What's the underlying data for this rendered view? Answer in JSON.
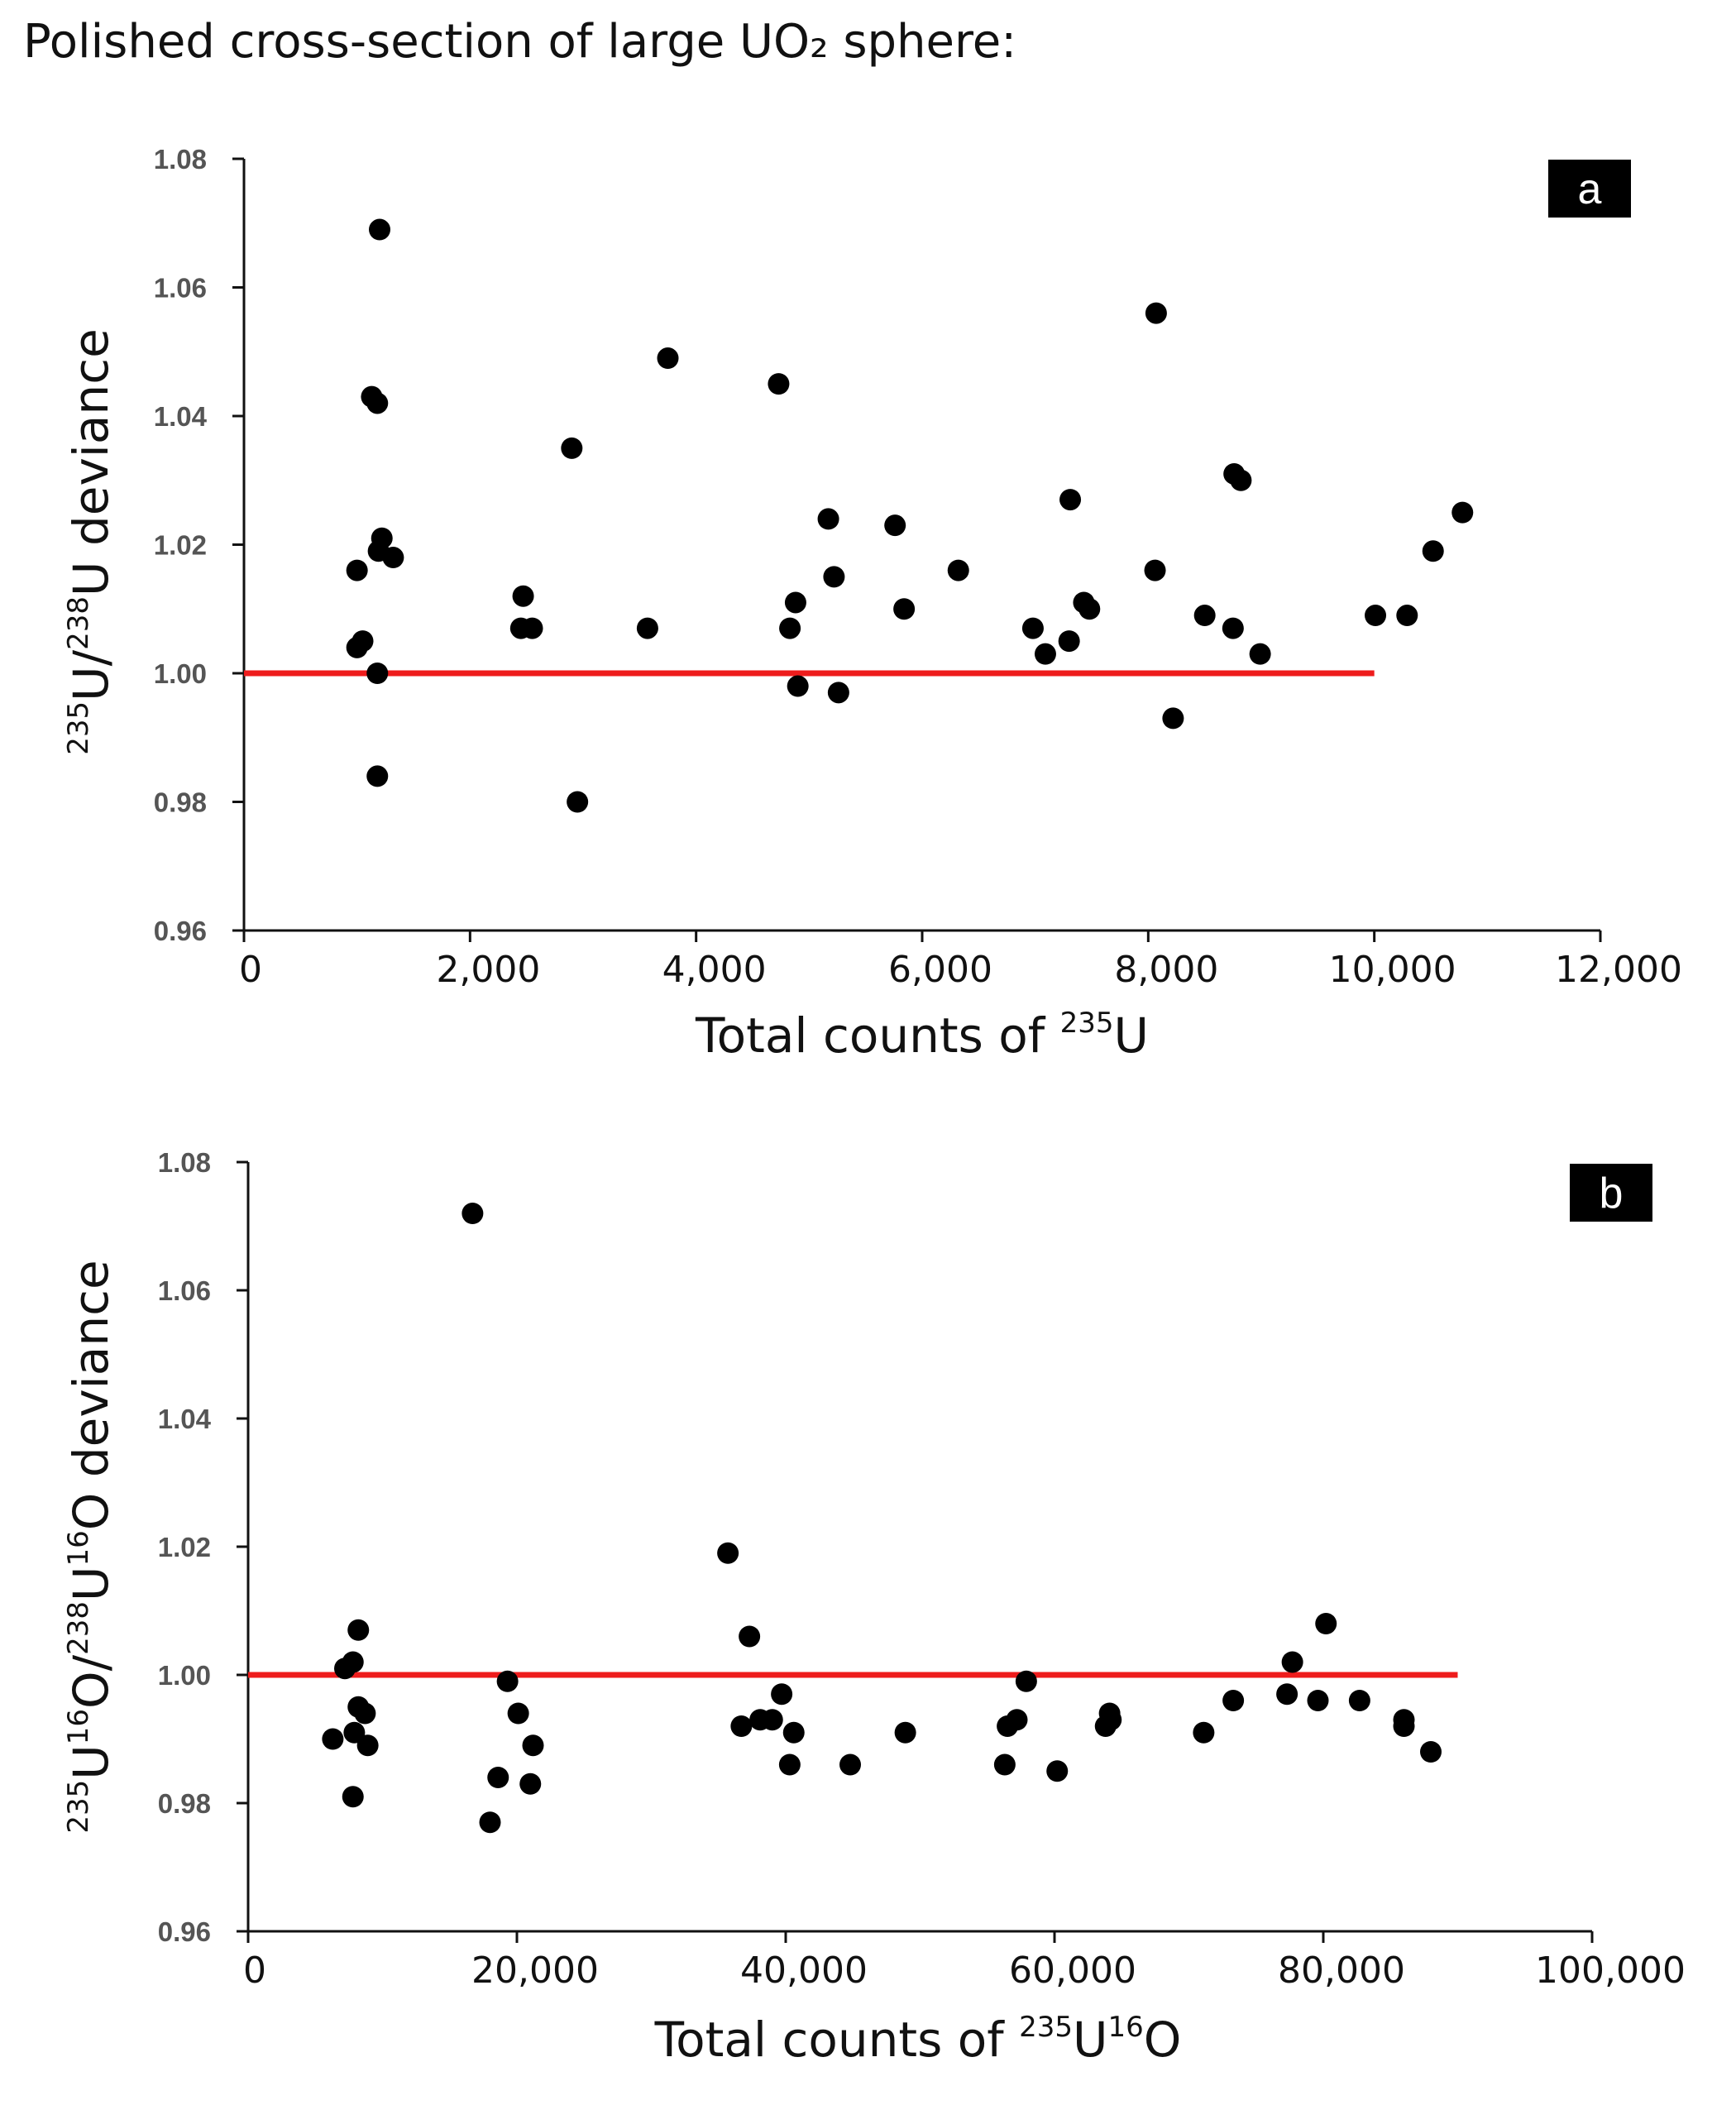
{
  "figure": {
    "title": "Polished cross-section of large UO₂ sphere:"
  },
  "chart_data": [
    {
      "panel": "a",
      "type": "scatter",
      "xlabel": {
        "text": "Total counts of ",
        "sup": "235",
        "tail": "U"
      },
      "ylabel": {
        "p1_sup": "235",
        "p1": "U/",
        "p2_sup": "238",
        "p2": "U deviance"
      },
      "xlim": [
        0,
        12000
      ],
      "ylim": [
        0.96,
        1.08
      ],
      "xticks": [
        "0",
        "2,000",
        "4,000",
        "6,000",
        "8,000",
        "10,000",
        "12,000"
      ],
      "yticks": [
        "0.96",
        "0.98",
        "1.00",
        "1.02",
        "1.04",
        "1.06",
        "1.08"
      ],
      "reference_line": {
        "y": 1.0,
        "x_start": 0,
        "x_end": 10000,
        "color": "#ee1c1c"
      },
      "points": [
        [
          1200,
          1.069
        ],
        [
          1130,
          1.043
        ],
        [
          1180,
          1.042
        ],
        [
          1000,
          1.016
        ],
        [
          1190,
          1.019
        ],
        [
          1220,
          1.021
        ],
        [
          1320,
          1.018
        ],
        [
          1050,
          1.005
        ],
        [
          1000,
          1.004
        ],
        [
          1180,
          1.0
        ],
        [
          1180,
          0.984
        ],
        [
          2470,
          1.012
        ],
        [
          2450,
          1.007
        ],
        [
          2550,
          1.007
        ],
        [
          2900,
          1.035
        ],
        [
          2950,
          0.98
        ],
        [
          3570,
          1.007
        ],
        [
          3750,
          1.049
        ],
        [
          4730,
          1.045
        ],
        [
          4880,
          1.011
        ],
        [
          4830,
          1.007
        ],
        [
          4900,
          0.998
        ],
        [
          5170,
          1.024
        ],
        [
          5220,
          1.015
        ],
        [
          5260,
          0.997
        ],
        [
          5760,
          1.023
        ],
        [
          5840,
          1.01
        ],
        [
          6320,
          1.016
        ],
        [
          6980,
          1.007
        ],
        [
          7090,
          1.003
        ],
        [
          7310,
          1.027
        ],
        [
          7300,
          1.005
        ],
        [
          7430,
          1.011
        ],
        [
          7480,
          1.01
        ],
        [
          8070,
          1.056
        ],
        [
          8060,
          1.016
        ],
        [
          8220,
          0.993
        ],
        [
          8500,
          1.009
        ],
        [
          8750,
          1.007
        ],
        [
          8760,
          1.031
        ],
        [
          8820,
          1.03
        ],
        [
          8990,
          1.003
        ],
        [
          10010,
          1.009
        ],
        [
          10290,
          1.009
        ],
        [
          10520,
          1.019
        ],
        [
          10780,
          1.025
        ]
      ]
    },
    {
      "panel": "b",
      "type": "scatter",
      "xlabel": {
        "text": "Total counts of ",
        "sup1": "235",
        "mid": "U",
        "sup2": "16",
        "tail": "O"
      },
      "ylabel": {
        "p1_sup": "235",
        "p1": "U",
        "p2_sup": "16",
        "p2": "O/",
        "p3_sup": "238",
        "p3": "U",
        "p4_sup": "16",
        "p4": "O deviance"
      },
      "xlim": [
        0,
        100000
      ],
      "ylim": [
        0.96,
        1.08
      ],
      "xticks": [
        "0",
        "20,000",
        "40,000",
        "60,000",
        "80,000",
        "100,000"
      ],
      "yticks": [
        "0.96",
        "0.98",
        "1.00",
        "1.02",
        "1.04",
        "1.06",
        "1.08"
      ],
      "reference_line": {
        "y": 1.0,
        "x_start": 0,
        "x_end": 90000,
        "color": "#ee1c1c"
      },
      "points": [
        [
          6300,
          0.99
        ],
        [
          7200,
          1.001
        ],
        [
          7800,
          1.002
        ],
        [
          8200,
          1.007
        ],
        [
          8200,
          0.995
        ],
        [
          8700,
          0.994
        ],
        [
          7900,
          0.991
        ],
        [
          8900,
          0.989
        ],
        [
          7800,
          0.981
        ],
        [
          16700,
          1.072
        ],
        [
          18000,
          0.977
        ],
        [
          18600,
          0.984
        ],
        [
          19300,
          0.999
        ],
        [
          20100,
          0.994
        ],
        [
          21200,
          0.989
        ],
        [
          21000,
          0.983
        ],
        [
          35700,
          1.019
        ],
        [
          37300,
          1.006
        ],
        [
          36700,
          0.992
        ],
        [
          38100,
          0.993
        ],
        [
          39000,
          0.993
        ],
        [
          39700,
          0.997
        ],
        [
          40600,
          0.991
        ],
        [
          40300,
          0.986
        ],
        [
          44800,
          0.986
        ],
        [
          48900,
          0.991
        ],
        [
          56300,
          0.986
        ],
        [
          56500,
          0.992
        ],
        [
          57200,
          0.993
        ],
        [
          57900,
          0.999
        ],
        [
          60200,
          0.985
        ],
        [
          63800,
          0.992
        ],
        [
          64100,
          0.994
        ],
        [
          64200,
          0.993
        ],
        [
          71100,
          0.991
        ],
        [
          73300,
          0.996
        ],
        [
          77300,
          0.997
        ],
        [
          77700,
          1.002
        ],
        [
          79600,
          0.996
        ],
        [
          80200,
          1.008
        ],
        [
          82700,
          0.996
        ],
        [
          86000,
          0.993
        ],
        [
          86000,
          0.992
        ],
        [
          88000,
          0.988
        ]
      ]
    }
  ],
  "panel_tags": {
    "a": "a",
    "b": "b"
  }
}
